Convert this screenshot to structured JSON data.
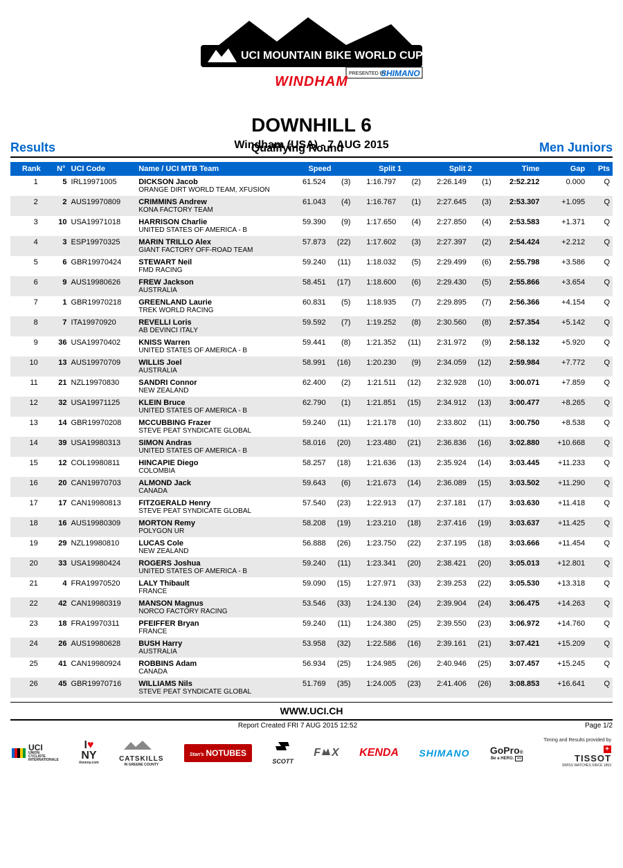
{
  "logo": {
    "top_line": "UCI MOUNTAIN BIKE WORLD CUP",
    "presented": "PRESENTED BY",
    "presenter": "SHIMANO",
    "location": "WINDHAM"
  },
  "titles": {
    "main": "DOWNHILL 6",
    "sub": "Windham (USA) - 7 AUG 2015",
    "round": "Qualifying Round",
    "left": "Results",
    "right": "Men Juniors"
  },
  "columns": {
    "rank": "Rank",
    "num": "N°",
    "uci": "UCI Code",
    "name": "Name / UCI MTB Team",
    "speed": "Speed",
    "split1": "Split 1",
    "split2": "Split 2",
    "time": "Time",
    "gap": "Gap",
    "pts": "Pts"
  },
  "rows": [
    {
      "rank": "1",
      "num": "5",
      "uci": "IRL19971005",
      "rider": "DICKSON Jacob",
      "team": "ORANGE DIRT WORLD TEAM, XFUSION",
      "speed": "61.524",
      "sr": "(3)",
      "s1": "1:16.797",
      "s1r": "(2)",
      "s2": "2:26.149",
      "s2r": "(1)",
      "time": "2:52.212",
      "gap": "0.000",
      "pts": "Q"
    },
    {
      "rank": "2",
      "num": "2",
      "uci": "AUS19970809",
      "rider": "CRIMMINS Andrew",
      "team": "KONA FACTORY TEAM",
      "speed": "61.043",
      "sr": "(4)",
      "s1": "1:16.767",
      "s1r": "(1)",
      "s2": "2:27.645",
      "s2r": "(3)",
      "time": "2:53.307",
      "gap": "+1.095",
      "pts": "Q"
    },
    {
      "rank": "3",
      "num": "10",
      "uci": "USA19971018",
      "rider": "HARRISON Charlie",
      "team": "UNITED STATES OF AMERICA - B",
      "speed": "59.390",
      "sr": "(9)",
      "s1": "1:17.650",
      "s1r": "(4)",
      "s2": "2:27.850",
      "s2r": "(4)",
      "time": "2:53.583",
      "gap": "+1.371",
      "pts": "Q"
    },
    {
      "rank": "4",
      "num": "3",
      "uci": "ESP19970325",
      "rider": "MARIN TRILLO Alex",
      "team": "GIANT FACTORY OFF-ROAD TEAM",
      "speed": "57.873",
      "sr": "(22)",
      "s1": "1:17.602",
      "s1r": "(3)",
      "s2": "2:27.397",
      "s2r": "(2)",
      "time": "2:54.424",
      "gap": "+2.212",
      "pts": "Q"
    },
    {
      "rank": "5",
      "num": "6",
      "uci": "GBR19970424",
      "rider": "STEWART Neil",
      "team": "FMD RACING",
      "speed": "59.240",
      "sr": "(11)",
      "s1": "1:18.032",
      "s1r": "(5)",
      "s2": "2:29.499",
      "s2r": "(6)",
      "time": "2:55.798",
      "gap": "+3.586",
      "pts": "Q"
    },
    {
      "rank": "6",
      "num": "9",
      "uci": "AUS19980626",
      "rider": "FREW Jackson",
      "team": "AUSTRALIA",
      "speed": "58.451",
      "sr": "(17)",
      "s1": "1:18.600",
      "s1r": "(6)",
      "s2": "2:29.430",
      "s2r": "(5)",
      "time": "2:55.866",
      "gap": "+3.654",
      "pts": "Q"
    },
    {
      "rank": "7",
      "num": "1",
      "uci": "GBR19970218",
      "rider": "GREENLAND Laurie",
      "team": "TREK WORLD RACING",
      "speed": "60.831",
      "sr": "(5)",
      "s1": "1:18.935",
      "s1r": "(7)",
      "s2": "2:29.895",
      "s2r": "(7)",
      "time": "2:56.366",
      "gap": "+4.154",
      "pts": "Q"
    },
    {
      "rank": "8",
      "num": "7",
      "uci": "ITA19970920",
      "rider": "REVELLI Loris",
      "team": "AB DEVINCI ITALY",
      "speed": "59.592",
      "sr": "(7)",
      "s1": "1:19.252",
      "s1r": "(8)",
      "s2": "2:30.560",
      "s2r": "(8)",
      "time": "2:57.354",
      "gap": "+5.142",
      "pts": "Q"
    },
    {
      "rank": "9",
      "num": "36",
      "uci": "USA19970402",
      "rider": "KNISS Warren",
      "team": "UNITED STATES OF AMERICA - B",
      "speed": "59.441",
      "sr": "(8)",
      "s1": "1:21.352",
      "s1r": "(11)",
      "s2": "2:31.972",
      "s2r": "(9)",
      "time": "2:58.132",
      "gap": "+5.920",
      "pts": "Q"
    },
    {
      "rank": "10",
      "num": "13",
      "uci": "AUS19970709",
      "rider": "WILLIS Joel",
      "team": "AUSTRALIA",
      "speed": "58.991",
      "sr": "(16)",
      "s1": "1:20.230",
      "s1r": "(9)",
      "s2": "2:34.059",
      "s2r": "(12)",
      "time": "2:59.984",
      "gap": "+7.772",
      "pts": "Q"
    },
    {
      "rank": "11",
      "num": "21",
      "uci": "NZL19970830",
      "rider": "SANDRI Connor",
      "team": "NEW ZEALAND",
      "speed": "62.400",
      "sr": "(2)",
      "s1": "1:21.511",
      "s1r": "(12)",
      "s2": "2:32.928",
      "s2r": "(10)",
      "time": "3:00.071",
      "gap": "+7.859",
      "pts": "Q"
    },
    {
      "rank": "12",
      "num": "32",
      "uci": "USA19971125",
      "rider": "KLEIN Bruce",
      "team": "UNITED STATES OF AMERICA - B",
      "speed": "62.790",
      "sr": "(1)",
      "s1": "1:21.851",
      "s1r": "(15)",
      "s2": "2:34.912",
      "s2r": "(13)",
      "time": "3:00.477",
      "gap": "+8.265",
      "pts": "Q"
    },
    {
      "rank": "13",
      "num": "14",
      "uci": "GBR19970208",
      "rider": "MCCUBBING Frazer",
      "team": "STEVE PEAT SYNDICATE GLOBAL",
      "speed": "59.240",
      "sr": "(11)",
      "s1": "1:21.178",
      "s1r": "(10)",
      "s2": "2:33.802",
      "s2r": "(11)",
      "time": "3:00.750",
      "gap": "+8.538",
      "pts": "Q"
    },
    {
      "rank": "14",
      "num": "39",
      "uci": "USA19980313",
      "rider": "SIMON Andras",
      "team": "UNITED STATES OF AMERICA - B",
      "speed": "58.016",
      "sr": "(20)",
      "s1": "1:23.480",
      "s1r": "(21)",
      "s2": "2:36.836",
      "s2r": "(16)",
      "time": "3:02.880",
      "gap": "+10.668",
      "pts": "Q"
    },
    {
      "rank": "15",
      "num": "12",
      "uci": "COL19980811",
      "rider": "HINCAPIE Diego",
      "team": "COLOMBIA",
      "speed": "58.257",
      "sr": "(18)",
      "s1": "1:21.636",
      "s1r": "(13)",
      "s2": "2:35.924",
      "s2r": "(14)",
      "time": "3:03.445",
      "gap": "+11.233",
      "pts": "Q"
    },
    {
      "rank": "16",
      "num": "20",
      "uci": "CAN19970703",
      "rider": "ALMOND Jack",
      "team": "CANADA",
      "speed": "59.643",
      "sr": "(6)",
      "s1": "1:21.673",
      "s1r": "(14)",
      "s2": "2:36.089",
      "s2r": "(15)",
      "time": "3:03.502",
      "gap": "+11.290",
      "pts": "Q"
    },
    {
      "rank": "17",
      "num": "17",
      "uci": "CAN19980813",
      "rider": "FITZGERALD Henry",
      "team": "STEVE PEAT SYNDICATE GLOBAL",
      "speed": "57.540",
      "sr": "(23)",
      "s1": "1:22.913",
      "s1r": "(17)",
      "s2": "2:37.181",
      "s2r": "(17)",
      "time": "3:03.630",
      "gap": "+11.418",
      "pts": "Q"
    },
    {
      "rank": "18",
      "num": "16",
      "uci": "AUS19980309",
      "rider": "MORTON Remy",
      "team": "POLYGON UR",
      "speed": "58.208",
      "sr": "(19)",
      "s1": "1:23.210",
      "s1r": "(18)",
      "s2": "2:37.416",
      "s2r": "(19)",
      "time": "3:03.637",
      "gap": "+11.425",
      "pts": "Q"
    },
    {
      "rank": "19",
      "num": "29",
      "uci": "NZL19980810",
      "rider": "LUCAS Cole",
      "team": "NEW ZEALAND",
      "speed": "56.888",
      "sr": "(26)",
      "s1": "1:23.750",
      "s1r": "(22)",
      "s2": "2:37.195",
      "s2r": "(18)",
      "time": "3:03.666",
      "gap": "+11.454",
      "pts": "Q"
    },
    {
      "rank": "20",
      "num": "33",
      "uci": "USA19980424",
      "rider": "ROGERS Joshua",
      "team": "UNITED STATES OF AMERICA - B",
      "speed": "59.240",
      "sr": "(11)",
      "s1": "1:23.341",
      "s1r": "(20)",
      "s2": "2:38.421",
      "s2r": "(20)",
      "time": "3:05.013",
      "gap": "+12.801",
      "pts": "Q"
    },
    {
      "rank": "21",
      "num": "4",
      "uci": "FRA19970520",
      "rider": "LALY Thibault",
      "team": "FRANCE",
      "speed": "59.090",
      "sr": "(15)",
      "s1": "1:27.971",
      "s1r": "(33)",
      "s2": "2:39.253",
      "s2r": "(22)",
      "time": "3:05.530",
      "gap": "+13.318",
      "pts": "Q"
    },
    {
      "rank": "22",
      "num": "42",
      "uci": "CAN19980319",
      "rider": "MANSON Magnus",
      "team": "NORCO FACTORY RACING",
      "speed": "53.546",
      "sr": "(33)",
      "s1": "1:24.130",
      "s1r": "(24)",
      "s2": "2:39.904",
      "s2r": "(24)",
      "time": "3:06.475",
      "gap": "+14.263",
      "pts": "Q"
    },
    {
      "rank": "23",
      "num": "18",
      "uci": "FRA19970311",
      "rider": "PFEIFFER Bryan",
      "team": "FRANCE",
      "speed": "59.240",
      "sr": "(11)",
      "s1": "1:24.380",
      "s1r": "(25)",
      "s2": "2:39.550",
      "s2r": "(23)",
      "time": "3:06.972",
      "gap": "+14.760",
      "pts": "Q"
    },
    {
      "rank": "24",
      "num": "26",
      "uci": "AUS19980628",
      "rider": "BUSH Harry",
      "team": "AUSTRALIA",
      "speed": "53.958",
      "sr": "(32)",
      "s1": "1:22.586",
      "s1r": "(16)",
      "s2": "2:39.161",
      "s2r": "(21)",
      "time": "3:07.421",
      "gap": "+15.209",
      "pts": "Q"
    },
    {
      "rank": "25",
      "num": "41",
      "uci": "CAN19980924",
      "rider": "ROBBINS Adam",
      "team": "CANADA",
      "speed": "56.934",
      "sr": "(25)",
      "s1": "1:24.985",
      "s1r": "(26)",
      "s2": "2:40.946",
      "s2r": "(25)",
      "time": "3:07.457",
      "gap": "+15.245",
      "pts": "Q"
    },
    {
      "rank": "26",
      "num": "45",
      "uci": "GBR19970716",
      "rider": "WILLIAMS Nils",
      "team": "STEVE PEAT SYNDICATE GLOBAL",
      "speed": "51.769",
      "sr": "(35)",
      "s1": "1:24.005",
      "s1r": "(23)",
      "s2": "2:41.406",
      "s2r": "(26)",
      "time": "3:08.853",
      "gap": "+16.641",
      "pts": "Q"
    }
  ],
  "footer": {
    "url": "WWW.UCI.CH",
    "report": "Report Created  FRI 7 AUG 2015 12:52",
    "page": "Page 1/2",
    "timing_label": "Timing and Results provided by",
    "sponsors": [
      "UCI",
      "I♥NY",
      "CATSKILLS",
      "NOTUBES",
      "SCOTT",
      "FOX",
      "KENDA",
      "SHIMANO",
      "GoPro",
      "TISSOT"
    ]
  },
  "colors": {
    "header_blue": "#0066cc",
    "row_even": "#e8e8e8",
    "windham_red": "#e30613",
    "text": "#000000",
    "bg": "#ffffff"
  }
}
